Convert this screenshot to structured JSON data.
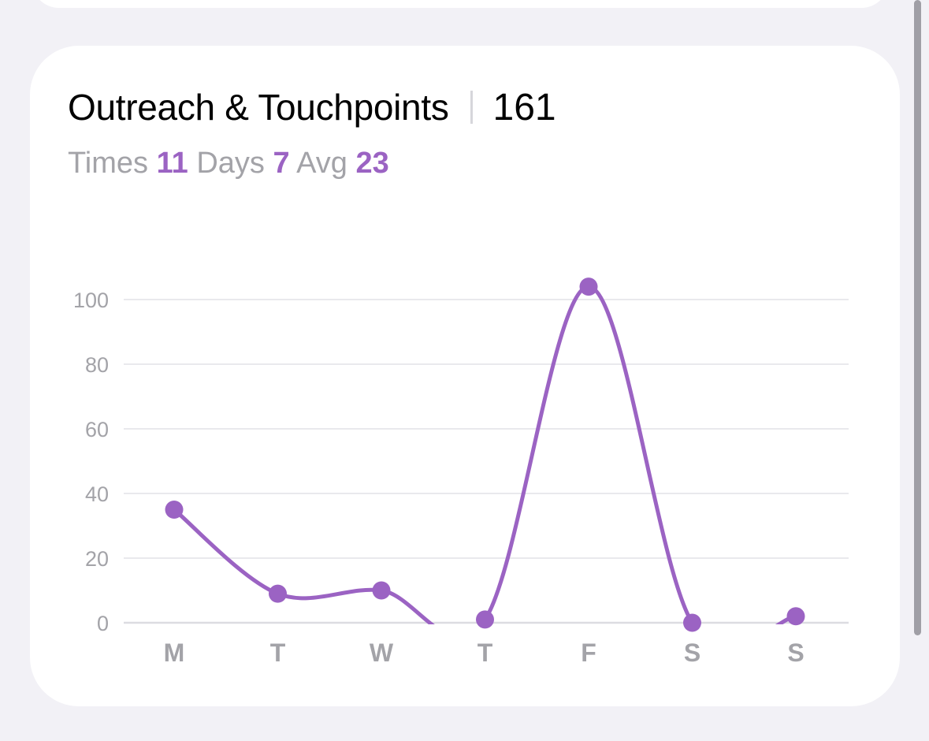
{
  "card": {
    "title": "Outreach & Touchpoints",
    "total": "161"
  },
  "stats": {
    "times_label": "Times",
    "times_value": "11",
    "days_label": "Days",
    "days_value": "7",
    "avg_label": "Avg",
    "avg_value": "23"
  },
  "colors": {
    "accent": "#9b63c3",
    "grid": "#e9e9ed",
    "muted_text": "#a3a3a8",
    "background": "#f2f1f6",
    "card": "#ffffff"
  },
  "chart_data": {
    "type": "line",
    "categories": [
      "M",
      "T",
      "W",
      "T",
      "F",
      "S",
      "S"
    ],
    "series": [
      {
        "values": [
          35,
          9,
          10,
          1,
          104,
          0,
          2
        ]
      }
    ],
    "yticks": [
      0,
      20,
      40,
      60,
      80,
      100
    ],
    "ylim": [
      0,
      100
    ],
    "grid": true,
    "smooth": true,
    "clip_below_zero": true
  }
}
